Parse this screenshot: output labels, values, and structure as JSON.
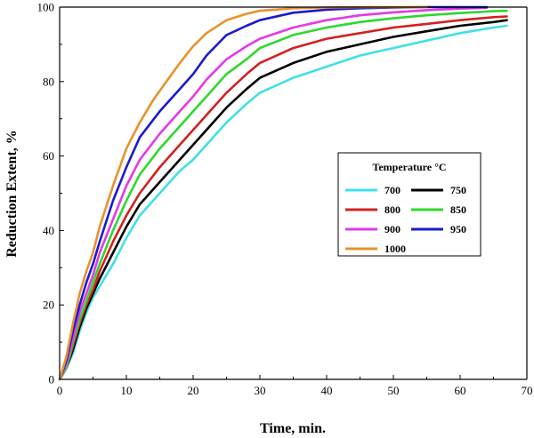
{
  "chart_data": {
    "type": "line",
    "xlabel": "Time, min.",
    "ylabel": "Reduction Extent, %",
    "xlim": [
      0,
      70
    ],
    "ylim": [
      0,
      100
    ],
    "xticks": [
      0,
      10,
      20,
      30,
      40,
      50,
      60,
      70
    ],
    "yticks": [
      0,
      20,
      40,
      60,
      80,
      100
    ],
    "grid": false,
    "legend": {
      "title": "Temperature °C",
      "placement": "center-right",
      "columns": 2
    },
    "series": [
      {
        "name": "700",
        "color": "#40e0e8",
        "x": [
          0,
          1,
          2,
          3,
          4,
          5,
          6,
          8,
          10,
          12,
          15,
          18,
          20,
          22,
          25,
          28,
          30,
          35,
          40,
          45,
          50,
          55,
          60,
          65,
          67
        ],
        "y": [
          0,
          3,
          7,
          13,
          18,
          22,
          25,
          31,
          38,
          44,
          50,
          56,
          59,
          63,
          69,
          74,
          77,
          81,
          84,
          87,
          89,
          91,
          93,
          94.5,
          95
        ]
      },
      {
        "name": "750",
        "color": "#000000",
        "x": [
          0,
          1,
          2,
          3,
          4,
          5,
          6,
          8,
          10,
          12,
          15,
          18,
          20,
          22,
          25,
          28,
          30,
          35,
          40,
          45,
          50,
          55,
          60,
          65,
          67
        ],
        "y": [
          0,
          3,
          8,
          14,
          19,
          23,
          27,
          34,
          41,
          47,
          53,
          59,
          63,
          67,
          73,
          78,
          81,
          85,
          88,
          90,
          92,
          93.5,
          95,
          96,
          96.5
        ]
      },
      {
        "name": "800",
        "color": "#d42020",
        "x": [
          0,
          1,
          2,
          3,
          4,
          5,
          6,
          8,
          10,
          12,
          15,
          18,
          20,
          22,
          25,
          28,
          30,
          35,
          40,
          45,
          50,
          55,
          60,
          65,
          67
        ],
        "y": [
          0,
          3,
          9,
          15,
          20,
          24,
          29,
          37,
          44,
          50,
          57,
          63,
          67,
          71,
          77,
          82,
          85,
          89,
          91.5,
          93,
          94.5,
          95.5,
          96.5,
          97.3,
          97.5
        ]
      },
      {
        "name": "850",
        "color": "#2ed82e",
        "x": [
          0,
          1,
          2,
          3,
          4,
          5,
          6,
          8,
          10,
          12,
          15,
          18,
          20,
          22,
          25,
          28,
          30,
          35,
          40,
          45,
          50,
          55,
          60,
          65,
          67
        ],
        "y": [
          0,
          3,
          10,
          16,
          21,
          26,
          31,
          40,
          48,
          55,
          62,
          68,
          72,
          76,
          82,
          86,
          89,
          92.5,
          94.5,
          96,
          97,
          97.8,
          98.4,
          98.9,
          99
        ]
      },
      {
        "name": "900",
        "color": "#e23ae8",
        "x": [
          0,
          1,
          2,
          3,
          4,
          5,
          6,
          8,
          10,
          12,
          15,
          18,
          20,
          22,
          25,
          28,
          30,
          35,
          40,
          45,
          50,
          55,
          60,
          64
        ],
        "y": [
          0,
          4,
          11,
          18,
          23,
          28,
          34,
          43,
          52,
          59,
          66,
          72,
          76,
          80.5,
          86,
          89.5,
          91.5,
          94.5,
          96.5,
          97.8,
          98.6,
          99.2,
          99.6,
          99.8
        ]
      },
      {
        "name": "950",
        "color": "#1a1ad0",
        "x": [
          0,
          1,
          2,
          3,
          4,
          5,
          6,
          8,
          10,
          12,
          15,
          18,
          20,
          22,
          25,
          28,
          30,
          35,
          40,
          45,
          50,
          55,
          60,
          64
        ],
        "y": [
          0,
          5,
          13,
          20,
          26,
          31,
          37,
          48,
          57,
          65,
          72,
          78,
          82,
          87,
          92.5,
          95,
          96.5,
          98.5,
          99.3,
          99.7,
          99.9,
          100,
          100,
          100
        ]
      },
      {
        "name": "1000",
        "color": "#e8922a",
        "x": [
          0,
          1,
          2,
          3,
          4,
          5,
          6,
          8,
          10,
          12,
          14,
          16,
          18,
          20,
          22,
          25,
          28,
          30,
          35,
          40,
          45,
          50,
          55
        ],
        "y": [
          0,
          6,
          15,
          23,
          29,
          34,
          41,
          52,
          62,
          69,
          75,
          80,
          85,
          89.5,
          93,
          96.5,
          98.2,
          99,
          99.7,
          99.9,
          100,
          100,
          100
        ]
      }
    ]
  }
}
